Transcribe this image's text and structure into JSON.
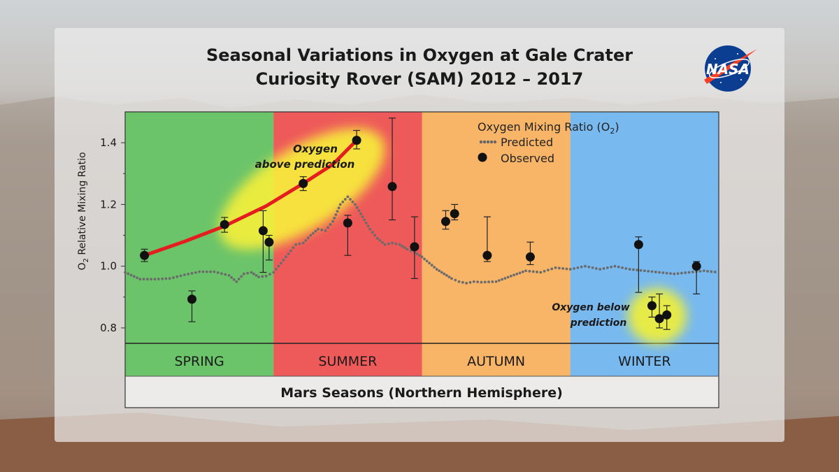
{
  "header": {
    "title_line1": "Seasonal Variations in Oxygen at Gale Crater",
    "title_line2": "Curiosity Rover (SAM) 2012 – 2017",
    "logo_text": "NASA"
  },
  "chart_data": {
    "type": "scatter",
    "ylabel_main": "O",
    "ylabel_sub": "2",
    "ylabel_rest": " Relative Mixing Ratio",
    "xlabel": "Mars Seasons (Northern Hemisphere)",
    "ylim": [
      0.75,
      1.5
    ],
    "yticks": [
      0.8,
      1.0,
      1.2,
      1.4
    ],
    "ytick_labels": [
      "0.8",
      "1.0",
      "1.2",
      "1.4"
    ],
    "seasons": [
      {
        "name": "SPRING",
        "color": "#6cc46a"
      },
      {
        "name": "SUMMER",
        "color": "#ee5a5a"
      },
      {
        "name": "AUTUMN",
        "color": "#f8b467"
      },
      {
        "name": "WINTER",
        "color": "#78b9ef"
      }
    ],
    "legend": {
      "title_main": "Oxygen Mixing Ratio (O",
      "title_sub": "2",
      "title_end": ")",
      "predicted_label": "Predicted",
      "observed_label": "Observed",
      "placement": "top-right"
    },
    "annotations": [
      {
        "line1": "Oxygen",
        "line2": "above prediction"
      },
      {
        "line1": "Oxygen below",
        "line2": "prediction"
      }
    ],
    "predicted": {
      "name": "Predicted",
      "x": [
        0.0,
        0.1,
        0.2,
        0.3,
        0.4,
        0.5,
        0.6,
        0.7,
        0.75,
        0.8,
        0.85,
        0.9,
        0.95,
        1.0,
        1.05,
        1.1,
        1.15,
        1.2,
        1.25,
        1.3,
        1.35,
        1.4,
        1.45,
        1.5,
        1.55,
        1.6,
        1.65,
        1.7,
        1.75,
        1.8,
        1.85,
        1.9,
        1.95,
        2.0,
        2.05,
        2.1,
        2.15,
        2.2,
        2.25,
        2.3,
        2.35,
        2.4,
        2.5,
        2.6,
        2.7,
        2.8,
        2.9,
        3.0,
        3.1,
        3.2,
        3.3,
        3.4,
        3.5,
        3.6,
        3.7,
        3.8,
        3.9,
        4.0
      ],
      "y": [
        0.98,
        0.958,
        0.958,
        0.96,
        0.972,
        0.982,
        0.982,
        0.97,
        0.95,
        0.975,
        0.98,
        0.965,
        0.968,
        0.98,
        1.01,
        1.04,
        1.07,
        1.075,
        1.1,
        1.12,
        1.115,
        1.145,
        1.2,
        1.225,
        1.2,
        1.16,
        1.12,
        1.09,
        1.07,
        1.075,
        1.07,
        1.055,
        1.045,
        1.03,
        1.01,
        0.99,
        0.975,
        0.96,
        0.95,
        0.945,
        0.95,
        0.948,
        0.95,
        0.968,
        0.985,
        0.98,
        0.995,
        0.99,
        1.0,
        0.99,
        1.0,
        0.99,
        0.985,
        0.98,
        0.975,
        0.98,
        0.985,
        0.98
      ]
    },
    "observed": {
      "name": "Observed",
      "points": [
        {
          "x": 0.13,
          "y": 1.035,
          "lo": 1.015,
          "hi": 1.055
        },
        {
          "x": 0.45,
          "y": 0.893,
          "lo": 0.82,
          "hi": 0.92
        },
        {
          "x": 0.67,
          "y": 1.135,
          "lo": 1.11,
          "hi": 1.158
        },
        {
          "x": 0.93,
          "y": 1.115,
          "lo": 0.98,
          "hi": 1.18
        },
        {
          "x": 0.97,
          "y": 1.078,
          "lo": 1.02,
          "hi": 1.1
        },
        {
          "x": 1.2,
          "y": 1.268,
          "lo": 1.245,
          "hi": 1.29
        },
        {
          "x": 1.5,
          "y": 1.14,
          "lo": 1.035,
          "hi": 1.165
        },
        {
          "x": 1.56,
          "y": 1.408,
          "lo": 1.38,
          "hi": 1.44
        },
        {
          "x": 1.8,
          "y": 1.258,
          "lo": 1.15,
          "hi": 1.48
        },
        {
          "x": 1.95,
          "y": 1.063,
          "lo": 0.96,
          "hi": 1.16
        },
        {
          "x": 2.16,
          "y": 1.145,
          "lo": 1.12,
          "hi": 1.18
        },
        {
          "x": 2.22,
          "y": 1.17,
          "lo": 1.15,
          "hi": 1.2
        },
        {
          "x": 2.44,
          "y": 1.035,
          "lo": 1.015,
          "hi": 1.16
        },
        {
          "x": 2.73,
          "y": 1.03,
          "lo": 1.005,
          "hi": 1.078
        },
        {
          "x": 3.46,
          "y": 1.07,
          "lo": 0.915,
          "hi": 1.095
        },
        {
          "x": 3.55,
          "y": 0.872,
          "lo": 0.835,
          "hi": 0.9
        },
        {
          "x": 3.6,
          "y": 0.83,
          "lo": 0.8,
          "hi": 0.91
        },
        {
          "x": 3.65,
          "y": 0.842,
          "lo": 0.795,
          "hi": 0.872
        },
        {
          "x": 3.85,
          "y": 1.0,
          "lo": 0.91,
          "hi": 1.015
        }
      ]
    },
    "trend": {
      "x": [
        0.13,
        0.4,
        0.67,
        0.95,
        1.2,
        1.4,
        1.56
      ],
      "y": [
        1.035,
        1.08,
        1.13,
        1.195,
        1.268,
        1.33,
        1.408
      ]
    }
  }
}
